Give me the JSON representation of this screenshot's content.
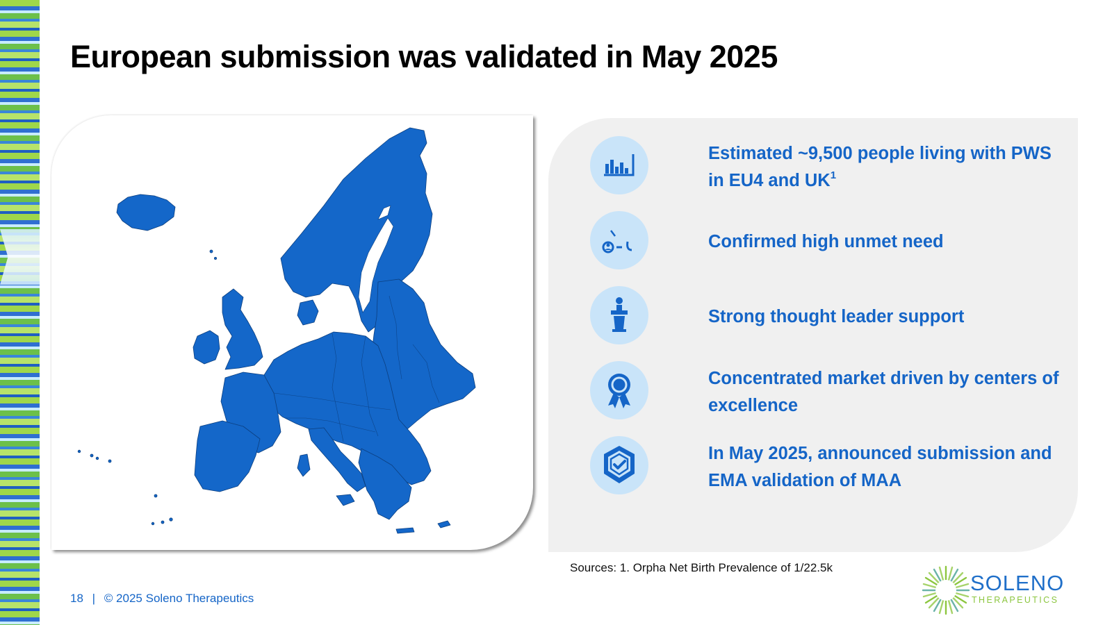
{
  "slide": {
    "title": "European submission was validated in May 2025"
  },
  "highlights": [
    {
      "icon": "bar-chart-icon",
      "text": "Estimated ~9,500 people living with PWS in EU4 and UK",
      "sup": "1"
    },
    {
      "icon": "unmet-need-icon",
      "text": "Confirmed high unmet need",
      "sup": ""
    },
    {
      "icon": "podium-speaker-icon",
      "text": "Strong thought leader support",
      "sup": ""
    },
    {
      "icon": "award-ribbon-icon",
      "text": "Concentrated market driven by centers of excellence",
      "sup": ""
    },
    {
      "icon": "verified-badge-icon",
      "text": "In May 2025, announced submission and EMA validation of MAA",
      "sup": ""
    }
  ],
  "sources": "Sources: 1. Orpha Net Birth Prevalence of 1/22.5k",
  "footer": {
    "page_number": "18",
    "separator": "|",
    "copyright": "© 2025 Soleno Therapeutics"
  },
  "logo": {
    "name": "SOLENO",
    "tagline": "THERAPEUTICS"
  },
  "colors": {
    "accent_blue": "#1565c7",
    "map_blue": "#1467c9",
    "icon_circle": "#c9e4f9",
    "panel_gray": "#f0f0f0",
    "logo_green": "#8cc63f"
  }
}
